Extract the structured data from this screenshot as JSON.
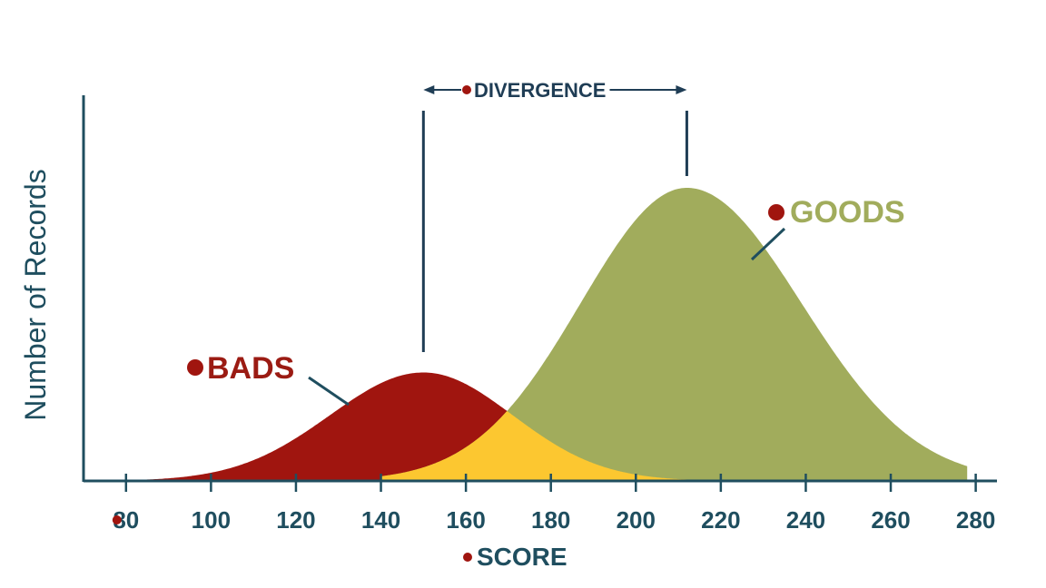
{
  "chart_data": {
    "type": "area",
    "title": "",
    "xlabel": "SCORE",
    "ylabel": "Number of Records",
    "xlim": [
      70,
      285
    ],
    "ylim": [
      0,
      1.0
    ],
    "x_ticks": [
      80,
      100,
      120,
      140,
      160,
      180,
      200,
      220,
      240,
      260,
      280
    ],
    "x_tick_labels": [
      "80",
      "100",
      "120",
      "140",
      "160",
      "180",
      "200",
      "220",
      "240",
      "260",
      "280"
    ],
    "grid": false,
    "series": [
      {
        "name": "BADS",
        "mean": 150,
        "peak": 0.37,
        "sd_left": 22,
        "sd_right": 21,
        "min": 82,
        "max": 222,
        "color": "#a0150f"
      },
      {
        "name": "GOODS",
        "mean": 212,
        "peak": 1.0,
        "sd_left": 25,
        "sd_right": 27,
        "min": 140,
        "max": 278,
        "color": "#a1ac5c"
      }
    ],
    "overlap_color": "#fcc730",
    "annotations": {
      "divergence": {
        "label": "DIVERGENCE",
        "from": 150,
        "to": 212
      }
    },
    "colors": {
      "axis": "#1f4e5f",
      "marker": "#a0150f"
    }
  }
}
